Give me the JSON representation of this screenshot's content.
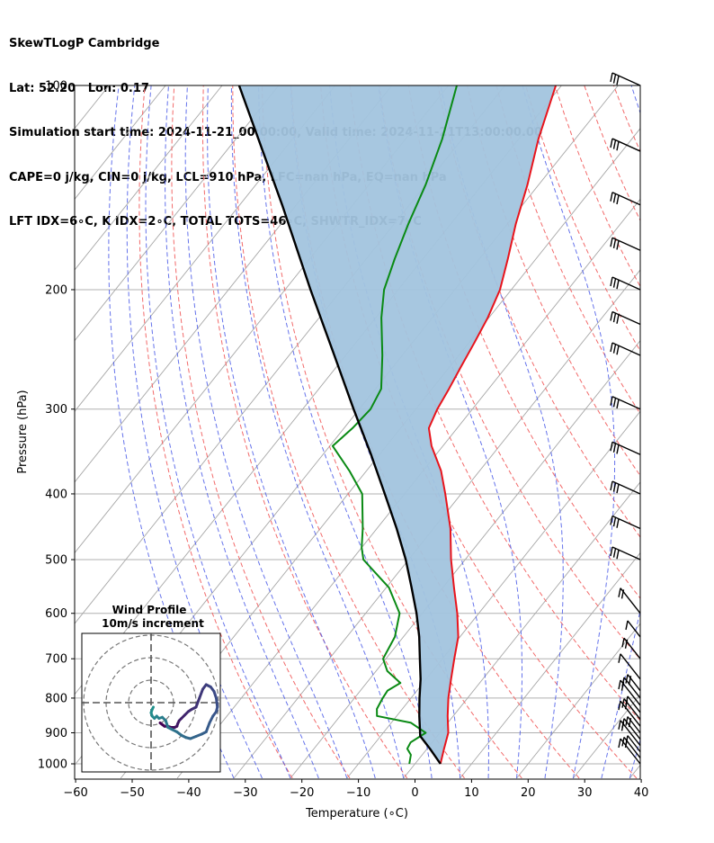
{
  "header": {
    "line1": "SkewTLogP Cambridge",
    "line2": "Lat: 52.20   Lon: 0.17",
    "line3": "Simulation start time: 2024-11-21_00:00:00, Valid time: 2024-11-21T13:00:00.00",
    "line4": "CAPE=0 j/kg, CIN=0 j/kg, LCL=910 hPa, LFC=nan hPa, EQ=nan hPa",
    "line5": "LFT IDX=6∘C, K IDX=2∘C, TOTAL TOTS=46∘C, SHWTR_IDX=7∘C"
  },
  "inset": {
    "title": "Wind Profile",
    "subtitle": "10m/s increment"
  },
  "chart_data": {
    "type": "line",
    "title": "SkewTLogP Cambridge",
    "xlabel": "Temperature (∘C)",
    "ylabel": "Pressure (hPa)",
    "xlim": [
      -60,
      40
    ],
    "ylim": [
      1050,
      100
    ],
    "y_scale": "log",
    "xticks": [
      -60,
      -50,
      -40,
      -30,
      -20,
      -10,
      0,
      10,
      20,
      30,
      40
    ],
    "yticks": [
      100,
      200,
      300,
      400,
      500,
      600,
      700,
      800,
      900,
      1000
    ],
    "grid": true,
    "colors": {
      "temperature": "#e8141c",
      "dewpoint": "#0a8a14",
      "parcel": "#000000",
      "cape_fill": "#a2c4de",
      "dry_adiabats": "#f26a6a",
      "moist_adiabats": "#4a5ae8",
      "isotherms": "#aaaaaa"
    },
    "series": [
      {
        "id": "temperature",
        "pressure": [
          1000,
          950,
          900,
          850,
          800,
          750,
          700,
          650,
          600,
          550,
          500,
          450,
          400,
          370,
          340,
          320,
          300,
          280,
          260,
          240,
          220,
          200,
          180,
          160,
          140,
          120,
          100
        ],
        "values": [
          4.5,
          3.0,
          1.5,
          -1.0,
          -3.4,
          -5.6,
          -7.9,
          -10.3,
          -13.8,
          -18.0,
          -22.5,
          -27.0,
          -32.8,
          -36.8,
          -42.0,
          -45.0,
          -46.2,
          -47.0,
          -48.0,
          -49.0,
          -50.2,
          -52.0,
          -55.0,
          -58.5,
          -62.0,
          -66.5,
          -71.0
        ]
      },
      {
        "id": "dewpoint",
        "pressure": [
          1000,
          970,
          950,
          930,
          900,
          870,
          850,
          830,
          800,
          780,
          760,
          730,
          700,
          650,
          600,
          550,
          500,
          480,
          450,
          400,
          370,
          340,
          320,
          300,
          280,
          250,
          220,
          200,
          180,
          160,
          140,
          120,
          100
        ],
        "values": [
          -1.0,
          -2.0,
          -3.5,
          -3.8,
          -2.5,
          -6.5,
          -13.5,
          -14.5,
          -15.0,
          -15.2,
          -14.0,
          -18.0,
          -20.5,
          -21.5,
          -24.0,
          -29.5,
          -38.0,
          -40.0,
          -42.5,
          -47.5,
          -53.0,
          -59.5,
          -58.5,
          -58.0,
          -59.0,
          -63.5,
          -69.0,
          -72.5,
          -75.0,
          -77.5,
          -80.0,
          -83.5,
          -88.5
        ]
      },
      {
        "id": "parcel",
        "pressure": [
          1000,
          950,
          910,
          850,
          800,
          750,
          700,
          650,
          600,
          550,
          500,
          450,
          400,
          350,
          300,
          250,
          200,
          150,
          100
        ],
        "values": [
          4.5,
          0.5,
          -3.0,
          -6.0,
          -8.5,
          -11.0,
          -14.0,
          -17.2,
          -21.0,
          -25.5,
          -30.5,
          -36.5,
          -43.5,
          -51.5,
          -61.0,
          -72.0,
          -85.5,
          -102.5,
          -127.0
        ]
      }
    ],
    "wind_barbs": {
      "pressure": [
        1000,
        980,
        960,
        940,
        920,
        900,
        880,
        860,
        840,
        820,
        800,
        780,
        750,
        700,
        650,
        600,
        500,
        450,
        400,
        350,
        300,
        250,
        225,
        200,
        175,
        150,
        125,
        100
      ]
    },
    "hodograph": {
      "rings": [
        10,
        20,
        30
      ],
      "u": [
        4,
        6,
        7.5,
        9,
        10.5,
        11.5,
        11.8,
        12.5,
        13.5,
        15,
        16.5,
        18,
        20,
        21.5,
        23,
        24.5,
        25.5,
        26.5,
        28,
        29,
        29.5,
        29,
        27.5,
        26,
        24.5,
        22.5,
        20,
        17.5,
        15.5,
        13.5,
        11.5,
        9.5,
        7.5,
        6.5,
        5,
        3.5,
        2.5,
        1.5,
        0.5,
        0,
        0.5,
        1
      ],
      "v": [
        -9,
        -10.5,
        -10.5,
        -11,
        -11,
        -10.5,
        -9.5,
        -8,
        -7,
        -5.5,
        -4,
        -3,
        -2,
        2,
        6,
        8,
        7.5,
        7,
        5,
        2,
        -2,
        -4,
        -6,
        -9,
        -13,
        -14,
        -15,
        -16,
        -15.5,
        -14.5,
        -13,
        -12,
        -11,
        -8,
        -6.5,
        -7,
        -6,
        -7,
        -6,
        -4.5,
        -3,
        -2
      ]
    }
  }
}
